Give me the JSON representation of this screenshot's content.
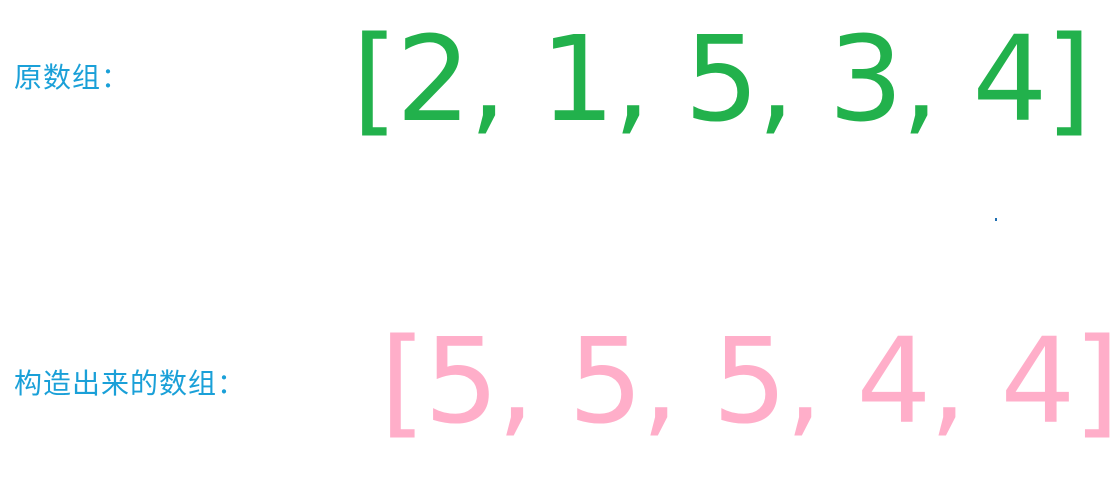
{
  "colors": {
    "label": "#1aa0d8",
    "original_array": "#22b14c",
    "constructed_array": "#ffaec9"
  },
  "original": {
    "label": "原数组：",
    "array_text": "[2, 1, 5, 3, 4]",
    "values": [
      2,
      1,
      5,
      3,
      4
    ]
  },
  "constructed": {
    "label": "构造出来的数组：",
    "array_text": "[5, 5, 5, 4, 4]",
    "values": [
      5,
      5,
      5,
      4,
      4
    ]
  }
}
